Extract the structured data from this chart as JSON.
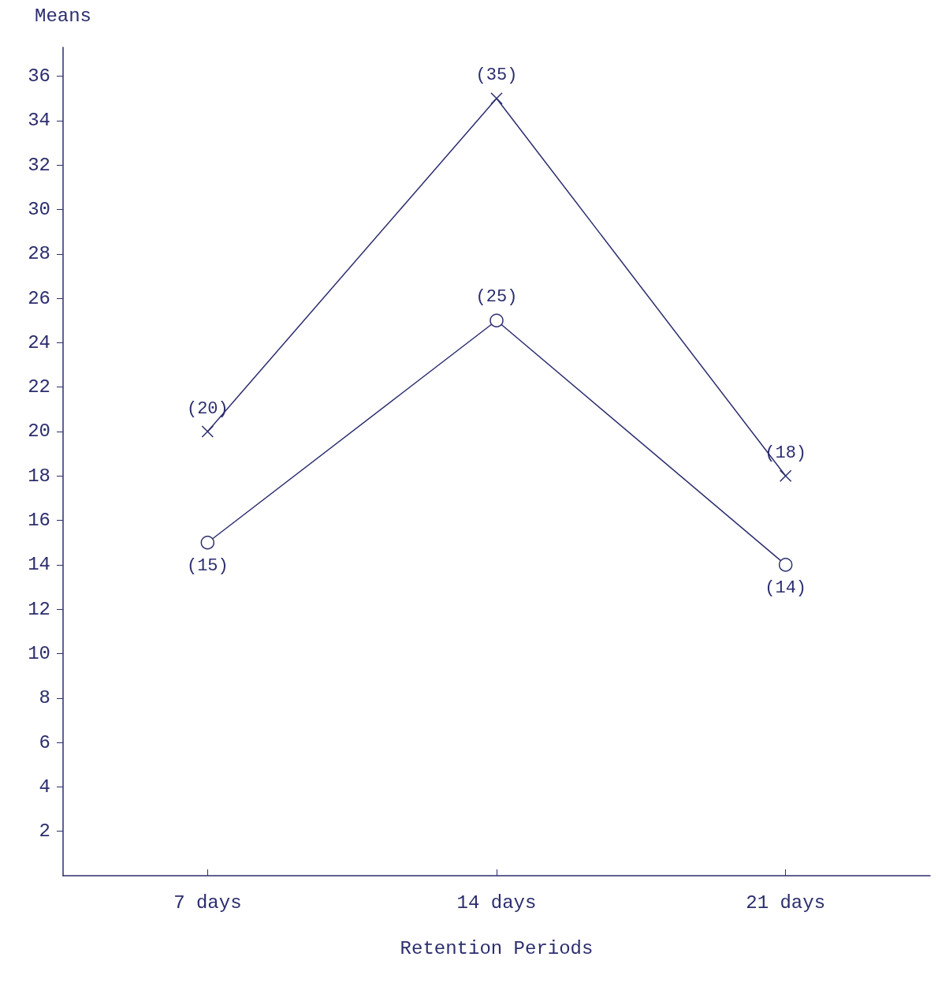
{
  "chart_data": {
    "type": "line",
    "xlabel": "Retention Periods",
    "ylabel": "Means",
    "categories": [
      "7 days",
      "14 days",
      "21 days"
    ],
    "series": [
      {
        "color": "#2b2d6e",
        "values": [
          20,
          35,
          18
        ],
        "marker": "cross",
        "value_labels": [
          "(20)",
          "(35)",
          "(18)"
        ]
      },
      {
        "color": "#2b2d6e",
        "values": [
          15,
          25,
          14
        ],
        "marker": "circle",
        "value_labels": [
          "(15)",
          "(25)",
          "(14)"
        ]
      }
    ],
    "ylim": [
      0,
      37.3
    ],
    "yticks": [
      2,
      4,
      6,
      8,
      10,
      12,
      14,
      16,
      18,
      20,
      22,
      24,
      26,
      28,
      30,
      32,
      34,
      36
    ],
    "grid": false,
    "line_style": "solid"
  }
}
